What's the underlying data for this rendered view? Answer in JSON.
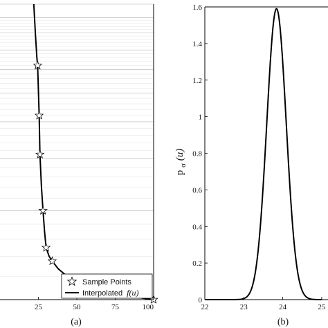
{
  "chart_data": [
    {
      "panel": "a",
      "type": "line",
      "panel_label": "(a)",
      "x_ticks": [
        "25",
        "50",
        "75",
        "100"
      ],
      "xlim": [
        0,
        100
      ],
      "ylim": [
        0,
        1
      ],
      "yscale": "log",
      "grid": "horizontal minor lines",
      "series": [
        {
          "name": "Sample Points",
          "kind": "markers",
          "marker": "star",
          "x": [
            24.5,
            25.5,
            26,
            28,
            30,
            34,
            50,
            75,
            100
          ],
          "y": [
            0.62,
            0.42,
            0.31,
            0.2,
            0.15,
            0.135,
            0.115,
            0.105,
            0.1
          ]
        },
        {
          "name": "Interpolated",
          "name_suffix": "f(u)",
          "kind": "line",
          "x": [
            22,
            23,
            24,
            24.5,
            25.5,
            26,
            27,
            28,
            29,
            30,
            32,
            34,
            38,
            42,
            50,
            60,
            75,
            88,
            100
          ],
          "y": [
            1.0,
            0.8,
            0.66,
            0.62,
            0.42,
            0.31,
            0.24,
            0.2,
            0.17,
            0.15,
            0.14,
            0.135,
            0.127,
            0.122,
            0.115,
            0.11,
            0.105,
            0.102,
            0.1
          ]
        }
      ],
      "legend_position": "bottom-right"
    },
    {
      "panel": "b",
      "type": "line",
      "panel_label": "(b)",
      "ylabel_main": "p",
      "ylabel_sub": "σ",
      "ylabel_arg": "(u)",
      "xlim": [
        22,
        25
      ],
      "ylim": [
        0,
        1.6
      ],
      "x_ticks": [
        "22",
        "23",
        "24",
        "25"
      ],
      "y_ticks": [
        "0",
        "0.2",
        "0.4",
        "0.6",
        "0.8",
        "1",
        "1.2",
        "1.4",
        "1.6"
      ],
      "grid": false,
      "series": [
        {
          "kind": "gaussian",
          "mean": 23.84,
          "sd": 0.25,
          "peak": 1.59
        }
      ]
    }
  ],
  "colors": {
    "line": "#000000",
    "grid": "#b4b4b4",
    "axis": "#000000"
  }
}
